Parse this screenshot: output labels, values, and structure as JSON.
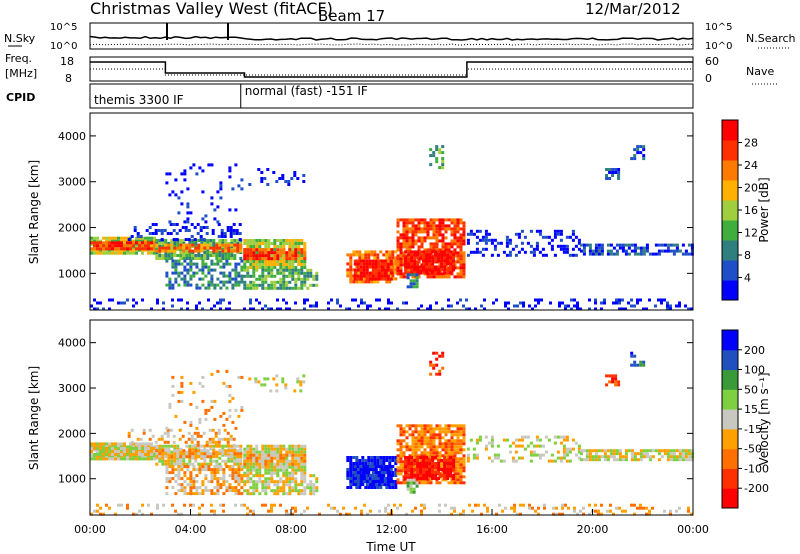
{
  "header": {
    "station": "Christmas Valley West (fitACF)",
    "beam": "Beam 17",
    "date": "12/Mar/2012"
  },
  "status_panels": {
    "nsky": {
      "label": "N.Sky",
      "ticks": [
        "10^5",
        "10^0"
      ]
    },
    "nsearch": {
      "label": "N.Search",
      "ticks": [
        "10^5",
        "10^0"
      ]
    },
    "freq": {
      "label_line1": "Freq.",
      "label_line2": "[MHz]",
      "ticks": [
        "18",
        "8"
      ]
    },
    "nave": {
      "label": "Nave",
      "ticks": [
        "60",
        "0"
      ]
    },
    "cpid": {
      "label": "CPID",
      "segments": [
        {
          "start_hour": 0.0,
          "end_hour": 6.0,
          "text": "themis 3300 IF"
        },
        {
          "start_hour": 6.0,
          "end_hour": 24.0,
          "text": "normal (fast) -151 IF"
        }
      ]
    }
  },
  "colors": {
    "power": [
      "#0000ff",
      "#1e4fc8",
      "#2f7f7f",
      "#3fae3f",
      "#9fcf3f",
      "#ffb000",
      "#ff7a00",
      "#ff3000",
      "#ff0000"
    ],
    "velocity": [
      "#0000ff",
      "#2050c0",
      "#3a9a3a",
      "#7fd040",
      "#c8c8c0",
      "#ffa000",
      "#ff7000",
      "#ff3000",
      "#ff0000"
    ]
  },
  "chart_data": [
    {
      "type": "heatmap",
      "name": "power",
      "xlabel": "",
      "ylabel": "Slant Range [km]",
      "xlim": [
        0,
        24
      ],
      "ylim": [
        200,
        4500
      ],
      "y_ticks": [
        "1000",
        "2000",
        "3000",
        "4000"
      ],
      "colorbar": {
        "label": "Power [dB]",
        "ticks": [
          "4",
          "8",
          "12",
          "16",
          "20",
          "24",
          "28"
        ]
      }
    },
    {
      "type": "heatmap",
      "name": "velocity",
      "xlabel": "Time UT",
      "ylabel": "Slant Range [km]",
      "xlim": [
        0,
        24
      ],
      "ylim": [
        200,
        4500
      ],
      "x_ticks": [
        "00:00",
        "04:00",
        "08:00",
        "12:00",
        "16:00",
        "20:00",
        "00:00"
      ],
      "y_ticks": [
        "1000",
        "2000",
        "3000",
        "4000"
      ],
      "colorbar": {
        "label": "Velocity [m s⁻¹]",
        "ticks": [
          "200",
          "100",
          "50",
          "15",
          "-15",
          "-50",
          "-100",
          "-200"
        ]
      }
    }
  ]
}
